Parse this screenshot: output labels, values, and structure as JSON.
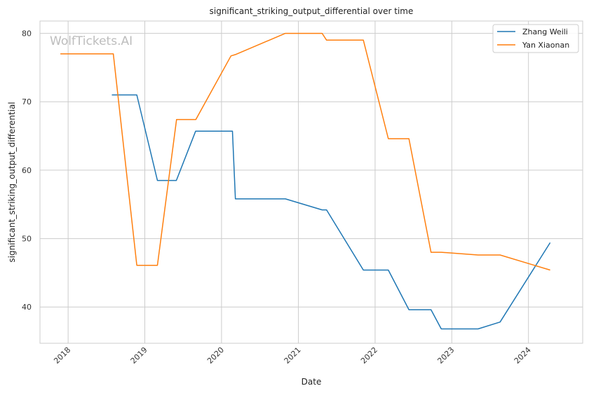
{
  "chart_data": {
    "type": "line",
    "title": "significant_striking_output_differential over time",
    "xlabel": "Date",
    "ylabel": "significant_striking_output_differential",
    "watermark": "WolfTickets.AI",
    "xlim": [
      "2017-08-20",
      "2024-09-15"
    ],
    "ylim": [
      34.7,
      81.8
    ],
    "x_ticks": [
      "2018-01-01",
      "2019-01-01",
      "2020-01-01",
      "2021-01-01",
      "2022-01-01",
      "2023-01-01",
      "2024-01-01"
    ],
    "x_tick_labels": [
      "2018",
      "2019",
      "2020",
      "2021",
      "2022",
      "2023",
      "2024"
    ],
    "y_ticks": [
      40,
      50,
      60,
      70,
      80
    ],
    "y_tick_labels": [
      "40",
      "50",
      "60",
      "70",
      "80"
    ],
    "grid": true,
    "legend_position": "top-right",
    "series": [
      {
        "name": "Zhang Weili",
        "color": "#1f77b4",
        "points": [
          {
            "x": "2018-07-28",
            "y": 71.0
          },
          {
            "x": "2018-11-24",
            "y": 71.0
          },
          {
            "x": "2019-03-02",
            "y": 58.5
          },
          {
            "x": "2019-05-31",
            "y": 58.5
          },
          {
            "x": "2019-08-31",
            "y": 65.7
          },
          {
            "x": "2020-02-22",
            "y": 65.7
          },
          {
            "x": "2020-03-07",
            "y": 55.8
          },
          {
            "x": "2020-10-31",
            "y": 55.8
          },
          {
            "x": "2021-04-24",
            "y": 54.2
          },
          {
            "x": "2021-05-15",
            "y": 54.2
          },
          {
            "x": "2021-11-06",
            "y": 45.4
          },
          {
            "x": "2022-03-05",
            "y": 45.4
          },
          {
            "x": "2022-06-11",
            "y": 39.6
          },
          {
            "x": "2022-09-24",
            "y": 39.6
          },
          {
            "x": "2022-11-12",
            "y": 36.8
          },
          {
            "x": "2023-05-06",
            "y": 36.8
          },
          {
            "x": "2023-08-19",
            "y": 37.8
          },
          {
            "x": "2024-04-13",
            "y": 49.4
          }
        ]
      },
      {
        "name": "Yan Xiaonan",
        "color": "#ff7f0e",
        "points": [
          {
            "x": "2017-11-25",
            "y": 77.0
          },
          {
            "x": "2018-08-04",
            "y": 77.0
          },
          {
            "x": "2018-11-24",
            "y": 46.1
          },
          {
            "x": "2019-03-02",
            "y": 46.1
          },
          {
            "x": "2019-06-01",
            "y": 67.4
          },
          {
            "x": "2019-09-01",
            "y": 67.4
          },
          {
            "x": "2020-02-15",
            "y": 76.7
          },
          {
            "x": "2020-03-07",
            "y": 76.9
          },
          {
            "x": "2020-10-31",
            "y": 80.0
          },
          {
            "x": "2021-04-24",
            "y": 80.0
          },
          {
            "x": "2021-05-15",
            "y": 79.0
          },
          {
            "x": "2021-11-06",
            "y": 79.0
          },
          {
            "x": "2022-03-05",
            "y": 64.6
          },
          {
            "x": "2022-06-11",
            "y": 64.6
          },
          {
            "x": "2022-09-24",
            "y": 48.0
          },
          {
            "x": "2022-11-12",
            "y": 48.0
          },
          {
            "x": "2023-05-06",
            "y": 47.6
          },
          {
            "x": "2023-08-19",
            "y": 47.6
          },
          {
            "x": "2024-04-13",
            "y": 45.4
          }
        ]
      }
    ]
  }
}
